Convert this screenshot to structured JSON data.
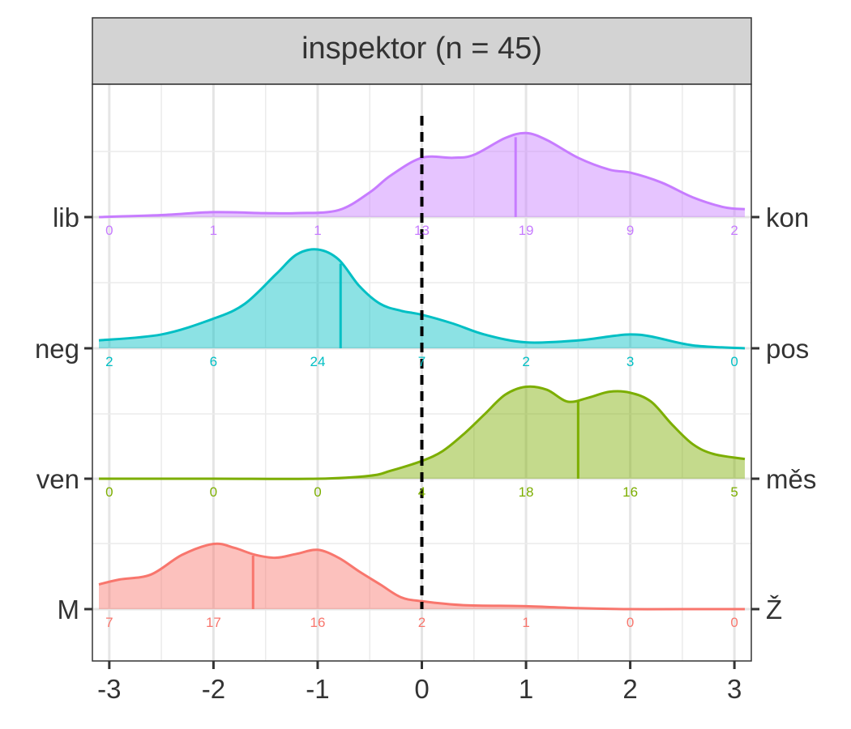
{
  "chart_data": {
    "type": "area",
    "title": "inspektor (n = 45)",
    "xlabel": "",
    "ylabel": "",
    "xlim": [
      -3.1,
      3.1
    ],
    "x_ticks": [
      -3,
      -2,
      -1,
      0,
      1,
      2,
      3
    ],
    "x_tick_labels": [
      "-3",
      "-2",
      "-1",
      "0",
      "1",
      "2",
      "3"
    ],
    "reference_line_x": 0,
    "count_positions": [
      -3,
      -2,
      -1,
      0,
      1,
      2,
      3
    ],
    "grid": true,
    "legend": "none",
    "series": [
      {
        "left_label": "lib",
        "right_label": "kon",
        "color": "#C77CFF",
        "median": 0.9,
        "counts": [
          "0",
          "1",
          "1",
          "13",
          "19",
          "9",
          "2"
        ],
        "density_x": [
          -3.1,
          -2.5,
          -2.0,
          -1.5,
          -1.2,
          -0.8,
          -0.5,
          -0.3,
          0.0,
          0.3,
          0.5,
          0.8,
          1.0,
          1.2,
          1.5,
          1.8,
          2.0,
          2.3,
          2.6,
          2.9,
          3.1
        ],
        "density_y": [
          0.0,
          0.02,
          0.05,
          0.04,
          0.04,
          0.07,
          0.25,
          0.42,
          0.6,
          0.6,
          0.63,
          0.8,
          0.85,
          0.78,
          0.6,
          0.48,
          0.45,
          0.35,
          0.2,
          0.1,
          0.08
        ]
      },
      {
        "left_label": "neg",
        "right_label": "pos",
        "color": "#00BFC4",
        "median": -0.78,
        "counts": [
          "2",
          "6",
          "24",
          "7",
          "2",
          "3",
          "0"
        ],
        "density_x": [
          -3.1,
          -2.5,
          -2.0,
          -1.7,
          -1.4,
          -1.2,
          -1.0,
          -0.8,
          -0.6,
          -0.4,
          -0.2,
          0.0,
          0.3,
          0.6,
          1.0,
          1.5,
          1.8,
          2.0,
          2.2,
          2.6,
          3.1
        ],
        "density_y": [
          0.08,
          0.14,
          0.3,
          0.45,
          0.75,
          0.95,
          1.0,
          0.9,
          0.63,
          0.45,
          0.38,
          0.34,
          0.25,
          0.14,
          0.06,
          0.08,
          0.12,
          0.14,
          0.12,
          0.03,
          0.0
        ]
      },
      {
        "left_label": "ven",
        "right_label": "měs",
        "color": "#7CAE00",
        "median": 1.5,
        "counts": [
          "0",
          "0",
          "0",
          "4",
          "18",
          "16",
          "5"
        ],
        "density_x": [
          -3.1,
          -2.0,
          -1.0,
          -0.5,
          -0.3,
          0.0,
          0.2,
          0.4,
          0.6,
          0.8,
          1.0,
          1.2,
          1.4,
          1.6,
          1.8,
          2.0,
          2.2,
          2.4,
          2.6,
          2.8,
          3.1
        ],
        "density_y": [
          0.0,
          0.0,
          0.0,
          0.03,
          0.08,
          0.18,
          0.28,
          0.45,
          0.65,
          0.85,
          0.93,
          0.9,
          0.78,
          0.82,
          0.88,
          0.87,
          0.78,
          0.55,
          0.35,
          0.25,
          0.2
        ]
      },
      {
        "left_label": "M",
        "right_label": "Ž",
        "color": "#F8766D",
        "median": -1.62,
        "counts": [
          "7",
          "17",
          "16",
          "2",
          "1",
          "0",
          "0"
        ],
        "density_x": [
          -3.1,
          -2.9,
          -2.6,
          -2.3,
          -2.0,
          -1.8,
          -1.6,
          -1.4,
          -1.2,
          -1.0,
          -0.8,
          -0.6,
          -0.4,
          -0.2,
          0.0,
          0.4,
          1.0,
          1.5,
          2.0,
          2.5,
          3.1
        ],
        "density_y": [
          0.25,
          0.3,
          0.35,
          0.55,
          0.66,
          0.62,
          0.55,
          0.52,
          0.56,
          0.6,
          0.52,
          0.38,
          0.25,
          0.12,
          0.08,
          0.04,
          0.03,
          0.01,
          0.0,
          0.0,
          0.0
        ]
      }
    ]
  }
}
